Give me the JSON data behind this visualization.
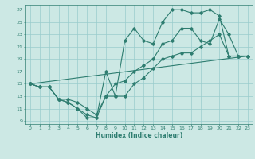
{
  "xlabel": "Humidex (Indice chaleur)",
  "bg_color": "#cce8e4",
  "grid_color": "#99cccc",
  "line_color": "#2e7d70",
  "xlim": [
    -0.5,
    23.5
  ],
  "ylim": [
    8.5,
    27.8
  ],
  "yticks": [
    9,
    11,
    13,
    15,
    17,
    19,
    21,
    23,
    25,
    27
  ],
  "xticks": [
    0,
    1,
    2,
    3,
    4,
    5,
    6,
    7,
    8,
    9,
    10,
    11,
    12,
    13,
    14,
    15,
    16,
    17,
    18,
    19,
    20,
    21,
    22,
    23
  ],
  "series_min_x": [
    0,
    1,
    2,
    3,
    4,
    5,
    6,
    7,
    8,
    9,
    10,
    11,
    12,
    13,
    14,
    15,
    16,
    17,
    18,
    19,
    20,
    21,
    22,
    23
  ],
  "series_min_y": [
    15,
    14.5,
    14.5,
    12.5,
    12,
    11,
    10,
    9.5,
    13,
    13,
    13,
    15,
    16,
    17.5,
    19,
    19.5,
    20,
    20,
    21,
    22,
    23,
    19.5,
    19.5,
    19.5
  ],
  "series_mid_x": [
    0,
    1,
    2,
    3,
    4,
    5,
    6,
    7,
    8,
    9,
    10,
    11,
    12,
    13,
    14,
    15,
    16,
    17,
    18,
    19,
    20,
    21,
    22,
    23
  ],
  "series_mid_y": [
    15,
    14.5,
    14.5,
    12.5,
    12.5,
    12,
    11,
    10,
    13,
    15,
    15.5,
    17,
    18,
    19,
    21.5,
    22,
    24,
    24,
    22,
    21.5,
    25.5,
    23,
    19.5,
    19.5
  ],
  "series_max_x": [
    0,
    1,
    2,
    3,
    4,
    5,
    6,
    7,
    8,
    9,
    10,
    11,
    12,
    13,
    14,
    15,
    16,
    17,
    18,
    19,
    20,
    21,
    22,
    23
  ],
  "series_max_y": [
    15,
    14.5,
    14.5,
    12.5,
    12,
    11,
    9.5,
    9.5,
    17,
    13,
    22,
    24,
    22,
    21.5,
    25,
    27,
    27,
    26.5,
    26.5,
    27,
    26,
    19.5,
    19.5,
    19.5
  ],
  "trend_x": [
    0,
    23
  ],
  "trend_y": [
    15,
    19.5
  ]
}
